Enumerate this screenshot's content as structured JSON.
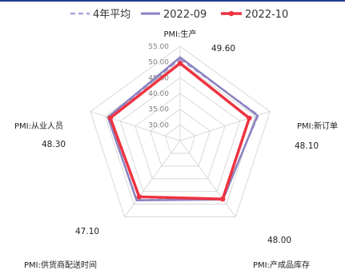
{
  "chart_data": {
    "type": "radar",
    "title": "",
    "axes": [
      "PMI:生产",
      "PMI:新订单",
      "PMI:产成品库存",
      "PMI:供货商配送时间",
      "PMI:从业人员"
    ],
    "rlim": [
      25,
      55
    ],
    "ticks": [
      30,
      35,
      40,
      45,
      50,
      55
    ],
    "tick_labels": [
      "30.00",
      "35.00",
      "40.00",
      "45.00",
      "50.00",
      "55.00"
    ],
    "grid": true,
    "legend": "top",
    "series": [
      {
        "name": "4年平均",
        "values": [
          50.9,
          51.2,
          47.7,
          48.4,
          48.9
        ],
        "color": "#a9a3d6",
        "style": "dashed"
      },
      {
        "name": "2022-09",
        "values": [
          51.5,
          50.8,
          48.2,
          48.5,
          49.1
        ],
        "color": "#8a82c0",
        "style": "solid"
      },
      {
        "name": "2022-10",
        "values": [
          49.6,
          48.1,
          48.0,
          47.1,
          48.3
        ],
        "color": "#ee3340",
        "style": "solid-marker"
      }
    ],
    "data_labels": [
      "49.60",
      "48.10",
      "48.00",
      "47.10",
      "48.30"
    ]
  }
}
